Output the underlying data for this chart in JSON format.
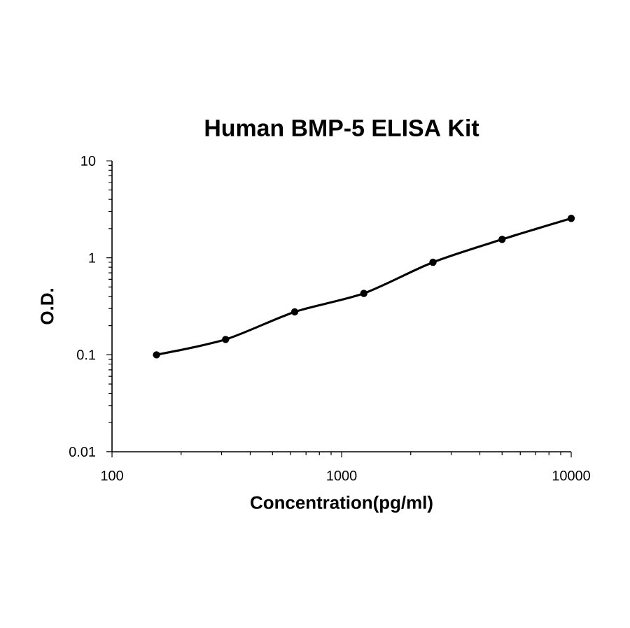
{
  "chart_data": {
    "type": "line",
    "title": "Human BMP-5 ELISA Kit",
    "xlabel": "Concentration(pg/ml)",
    "ylabel": "O.D.",
    "log": "xy",
    "x": [
      156.25,
      312.5,
      625,
      1250,
      2500,
      5000,
      10000
    ],
    "series": [
      {
        "color": "#000000",
        "values": [
          0.1,
          0.144,
          0.277,
          0.43,
          0.9,
          1.55,
          2.55
        ]
      }
    ],
    "marker": "circle",
    "line_style": "solid",
    "grid": false,
    "xlim": [
      100,
      10000
    ],
    "xticks": [
      100,
      1000,
      10000
    ],
    "ylim": [
      0.01,
      10
    ],
    "yticks": [
      0.01,
      0.1,
      1,
      10
    ]
  }
}
